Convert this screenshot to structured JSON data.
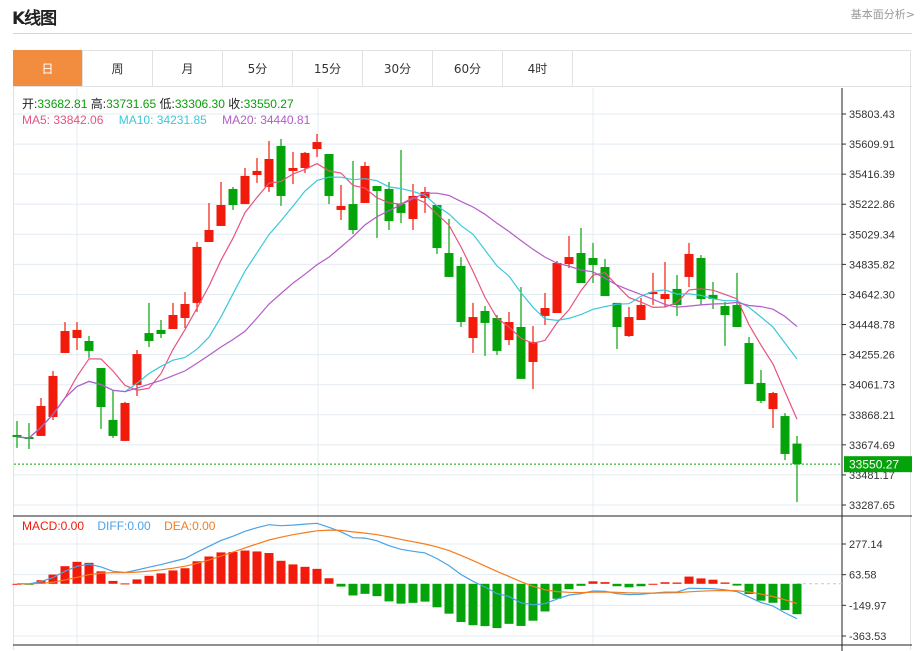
{
  "header": {
    "title": "K线图",
    "link": "基本面分析>"
  },
  "tabs": [
    {
      "label": "日",
      "active": true
    },
    {
      "label": "周"
    },
    {
      "label": "月"
    },
    {
      "label": "5分"
    },
    {
      "label": "15分"
    },
    {
      "label": "30分"
    },
    {
      "label": "60分"
    },
    {
      "label": "4时"
    }
  ],
  "ohlc_info": {
    "open_label": "开:",
    "open": "33682.81",
    "high_label": "高:",
    "high": "33731.65",
    "low_label": "低:",
    "low": "33306.30",
    "close_label": "收:",
    "close": "33550.27"
  },
  "ma_info": {
    "ma5": "MA5: 33842.06",
    "ma10": "MA10: 34231.85",
    "ma20": "MA20: 34440.81"
  },
  "macd_info": {
    "macd": "MACD:0.00",
    "diff": "DIFF:0.00",
    "dea": "DEA:0.00"
  },
  "colors": {
    "up": "#f21a0a",
    "down": "#05a30a",
    "ma5": "#e8537e",
    "ma10": "#3bc8dc",
    "ma20": "#b45cc7",
    "diff": "#4aa3e6",
    "dea": "#f57c1f",
    "accent": "#f28c3f"
  },
  "current_price": "33550.27",
  "chart_data": [
    {
      "type": "candlestick",
      "title": "K线图",
      "price_axis": [
        "35803.43",
        "35609.91",
        "35416.39",
        "35222.86",
        "35029.34",
        "34835.82",
        "34642.30",
        "34448.78",
        "34255.26",
        "34061.73",
        "33868.21",
        "33674.69",
        "33481.17",
        "33287.65"
      ],
      "ylim": [
        33287.65,
        35803.43
      ],
      "ohlc": [
        [
          33738,
          33828,
          33655,
          33725
        ],
        [
          33725,
          33815,
          33648,
          33712
        ],
        [
          33732,
          33976,
          33732,
          33925
        ],
        [
          33854,
          34150,
          33835,
          34118
        ],
        [
          34266,
          34465,
          34266,
          34407
        ],
        [
          34362,
          34465,
          34285,
          34414
        ],
        [
          34343,
          34375,
          34234,
          34279
        ],
        [
          34169,
          34169,
          33777,
          33918
        ],
        [
          33835,
          34028,
          33719,
          33732
        ],
        [
          33700,
          33951,
          33700,
          33944
        ],
        [
          34060,
          34285,
          33989,
          34259
        ],
        [
          34394,
          34588,
          34304,
          34343
        ],
        [
          34414,
          34478,
          34362,
          34388
        ],
        [
          34420,
          34588,
          34420,
          34510
        ],
        [
          34491,
          34658,
          34427,
          34581
        ],
        [
          34588,
          34980,
          34530,
          34948
        ],
        [
          34980,
          35231,
          34980,
          35057
        ],
        [
          35083,
          35366,
          35083,
          35218
        ],
        [
          35321,
          35334,
          35186,
          35218
        ],
        [
          35224,
          35456,
          35224,
          35405
        ],
        [
          35411,
          35520,
          35360,
          35437
        ],
        [
          35334,
          35630,
          35302,
          35514
        ],
        [
          35598,
          35643,
          35212,
          35276
        ],
        [
          35437,
          35559,
          35353,
          35456
        ],
        [
          35456,
          35559,
          35424,
          35553
        ],
        [
          35578,
          35675,
          35527,
          35623
        ],
        [
          35546,
          35546,
          35224,
          35276
        ],
        [
          35186,
          35347,
          35122,
          35212
        ],
        [
          35224,
          35501,
          35031,
          35057
        ],
        [
          35231,
          35495,
          35231,
          35469
        ],
        [
          35340,
          35340,
          35006,
          35308
        ],
        [
          35321,
          35366,
          35057,
          35115
        ],
        [
          35224,
          35572,
          35102,
          35167
        ],
        [
          35128,
          35353,
          35057,
          35276
        ],
        [
          35263,
          35334,
          35167,
          35302
        ],
        [
          35218,
          35218,
          34903,
          34941
        ],
        [
          34909,
          35128,
          34755,
          34755
        ],
        [
          34826,
          34883,
          34433,
          34465
        ],
        [
          34362,
          34588,
          34266,
          34497
        ],
        [
          34536,
          34568,
          34247,
          34459
        ],
        [
          34491,
          34510,
          34253,
          34279
        ],
        [
          34349,
          34530,
          34317,
          34465
        ],
        [
          34433,
          34690,
          34099,
          34099
        ],
        [
          34208,
          34439,
          34034,
          34337
        ],
        [
          34504,
          34652,
          34446,
          34555
        ],
        [
          34523,
          34858,
          34523,
          34845
        ],
        [
          34838,
          35019,
          34813,
          34883
        ],
        [
          34909,
          35070,
          34716,
          34716
        ],
        [
          34877,
          34974,
          34716,
          34832
        ],
        [
          34819,
          34871,
          34632,
          34632
        ],
        [
          34588,
          34588,
          34291,
          34433
        ],
        [
          34375,
          34562,
          34369,
          34497
        ],
        [
          34478,
          34620,
          34478,
          34575
        ],
        [
          34645,
          34781,
          34575,
          34658
        ],
        [
          34613,
          34851,
          34562,
          34645
        ],
        [
          34678,
          34768,
          34504,
          34575
        ],
        [
          34755,
          34974,
          34690,
          34903
        ],
        [
          34877,
          34896,
          34575,
          34613
        ],
        [
          34639,
          34723,
          34549,
          34613
        ],
        [
          34568,
          34594,
          34311,
          34510
        ],
        [
          34575,
          34781,
          34433,
          34433
        ],
        [
          34330,
          34369,
          34066,
          34066
        ],
        [
          34073,
          34156,
          33944,
          33957
        ],
        [
          33905,
          34015,
          33783,
          34008
        ],
        [
          33860,
          33879,
          33577,
          33616
        ],
        [
          33682.81,
          33731.65,
          33306.3,
          33550.27
        ]
      ],
      "series": [
        "MA5",
        "MA10",
        "MA20"
      ]
    },
    {
      "type": "bar+line",
      "title": "MACD",
      "y_axis": [
        "277.14",
        "63.58",
        "-149.97",
        "-363.53"
      ],
      "ylim": [
        -363.53,
        277.14
      ],
      "series": [
        "MACD",
        "DIFF",
        "DEA"
      ]
    }
  ]
}
